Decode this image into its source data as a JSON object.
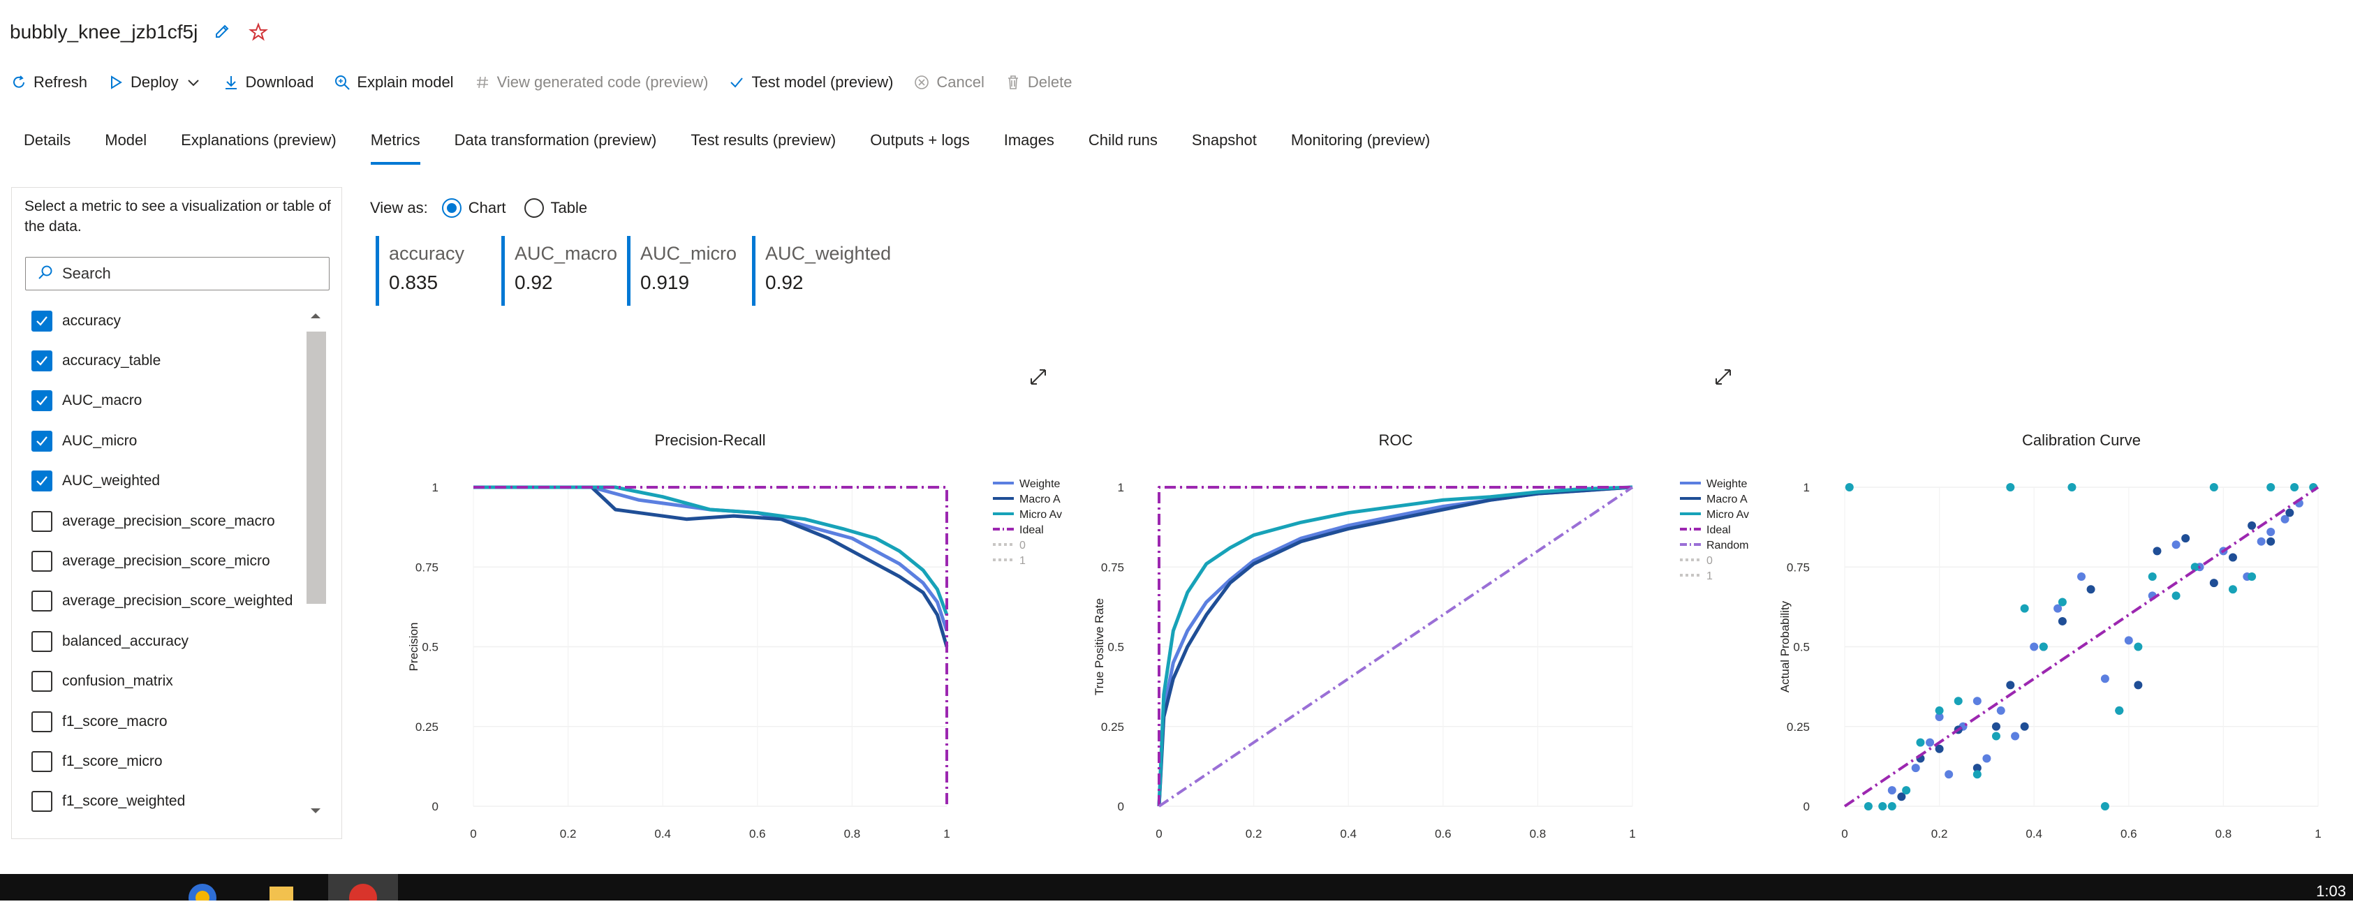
{
  "header": {
    "title": "bubbly_knee_jzb1cf5j"
  },
  "toolbar": [
    {
      "label": "Refresh",
      "icon": "refresh-icon",
      "enabled": true
    },
    {
      "label": "Deploy",
      "icon": "play-icon",
      "enabled": true
    },
    {
      "label": "Download",
      "icon": "download-icon",
      "enabled": true
    },
    {
      "label": "Explain model",
      "icon": "explain-icon",
      "enabled": true
    },
    {
      "label": "View generated code (preview)",
      "icon": "hash-icon",
      "enabled": false
    },
    {
      "label": "Test model (preview)",
      "icon": "check-icon",
      "enabled": true
    },
    {
      "label": "Cancel",
      "icon": "cancel-icon",
      "enabled": false
    },
    {
      "label": "Delete",
      "icon": "trash-icon",
      "enabled": false
    }
  ],
  "tabs": [
    "Details",
    "Model",
    "Explanations (preview)",
    "Metrics",
    "Data transformation (preview)",
    "Test results (preview)",
    "Outputs + logs",
    "Images",
    "Child runs",
    "Snapshot",
    "Monitoring (preview)"
  ],
  "active_tab": "Metrics",
  "left_panel": {
    "description": "Select a metric to see a visualization or table of the data.",
    "search_placeholder": "Search",
    "metrics": [
      {
        "label": "accuracy",
        "checked": true
      },
      {
        "label": "accuracy_table",
        "checked": true
      },
      {
        "label": "AUC_macro",
        "checked": true
      },
      {
        "label": "AUC_micro",
        "checked": true
      },
      {
        "label": "AUC_weighted",
        "checked": true
      },
      {
        "label": "average_precision_score_macro",
        "checked": false
      },
      {
        "label": "average_precision_score_micro",
        "checked": false
      },
      {
        "label": "average_precision_score_weighted",
        "checked": false
      },
      {
        "label": "balanced_accuracy",
        "checked": false
      },
      {
        "label": "confusion_matrix",
        "checked": false
      },
      {
        "label": "f1_score_macro",
        "checked": false
      },
      {
        "label": "f1_score_micro",
        "checked": false
      },
      {
        "label": "f1_score_weighted",
        "checked": false
      }
    ]
  },
  "view_as": {
    "label": "View as:",
    "options": [
      "Chart",
      "Table"
    ],
    "selected": "Chart"
  },
  "metric_cards": [
    {
      "name": "accuracy",
      "value": "0.835"
    },
    {
      "name": "AUC_macro",
      "value": "0.92"
    },
    {
      "name": "AUC_micro",
      "value": "0.919"
    },
    {
      "name": "AUC_weighted",
      "value": "0.92"
    }
  ],
  "colors": {
    "accent": "#0078d4",
    "weighted": "#5b7fe0",
    "macro": "#1f4e96",
    "micro": "#17a2b8",
    "ideal": "#9c27b0",
    "random": "#9a6fd6",
    "legend_muted": "#c8c6c4"
  },
  "chart_data": [
    {
      "type": "line",
      "title": "Precision-Recall",
      "xlabel": "",
      "ylabel": "Precision",
      "xlim": [
        0,
        1
      ],
      "ylim": [
        0,
        1
      ],
      "xticks": [
        "0",
        "0.2",
        "0.4",
        "0.6",
        "0.8",
        "1"
      ],
      "yticks": [
        "0",
        "0.25",
        "0.5",
        "0.75",
        "1"
      ],
      "legend": [
        "Weighte",
        "Macro A",
        "Micro Av",
        "Ideal",
        "0",
        "1"
      ],
      "series": [
        {
          "name": "Weighte",
          "x": [
            0,
            0.25,
            0.3,
            0.35,
            0.4,
            0.5,
            0.6,
            0.7,
            0.8,
            0.9,
            0.95,
            0.98,
            1
          ],
          "y": [
            1,
            1,
            0.98,
            0.96,
            0.95,
            0.93,
            0.92,
            0.88,
            0.84,
            0.76,
            0.7,
            0.64,
            0.55
          ]
        },
        {
          "name": "Macro A",
          "x": [
            0,
            0.25,
            0.3,
            0.35,
            0.45,
            0.55,
            0.65,
            0.75,
            0.8,
            0.85,
            0.9,
            0.95,
            0.98,
            1
          ],
          "y": [
            1,
            1,
            0.93,
            0.92,
            0.9,
            0.91,
            0.9,
            0.84,
            0.8,
            0.76,
            0.72,
            0.67,
            0.6,
            0.5
          ]
        },
        {
          "name": "Micro Av",
          "x": [
            0,
            0.3,
            0.4,
            0.5,
            0.6,
            0.7,
            0.78,
            0.85,
            0.9,
            0.95,
            0.98,
            1
          ],
          "y": [
            1,
            1,
            0.97,
            0.93,
            0.92,
            0.9,
            0.87,
            0.84,
            0.8,
            0.74,
            0.68,
            0.6
          ]
        },
        {
          "name": "Ideal",
          "x": [
            0,
            1,
            1
          ],
          "y": [
            1,
            1,
            0
          ]
        }
      ]
    },
    {
      "type": "line",
      "title": "ROC",
      "xlabel": "",
      "ylabel": "True Positive Rate",
      "xlim": [
        0,
        1
      ],
      "ylim": [
        0,
        1
      ],
      "xticks": [
        "0",
        "0.2",
        "0.4",
        "0.6",
        "0.8",
        "1"
      ],
      "yticks": [
        "0",
        "0.25",
        "0.5",
        "0.75",
        "1"
      ],
      "legend": [
        "Weighte",
        "Macro A",
        "Micro Av",
        "Ideal",
        "Random",
        "0",
        "1"
      ],
      "series": [
        {
          "name": "Weighte",
          "x": [
            0,
            0.01,
            0.03,
            0.06,
            0.1,
            0.15,
            0.2,
            0.3,
            0.4,
            0.5,
            0.6,
            0.7,
            0.8,
            0.9,
            1
          ],
          "y": [
            0,
            0.3,
            0.45,
            0.55,
            0.64,
            0.71,
            0.77,
            0.84,
            0.88,
            0.91,
            0.94,
            0.96,
            0.98,
            0.99,
            1
          ]
        },
        {
          "name": "Macro A",
          "x": [
            0,
            0.01,
            0.03,
            0.06,
            0.1,
            0.15,
            0.2,
            0.3,
            0.4,
            0.5,
            0.6,
            0.7,
            0.8,
            0.9,
            1
          ],
          "y": [
            0,
            0.28,
            0.4,
            0.5,
            0.6,
            0.7,
            0.76,
            0.83,
            0.87,
            0.9,
            0.93,
            0.96,
            0.98,
            0.99,
            1
          ]
        },
        {
          "name": "Micro Av",
          "x": [
            0,
            0.01,
            0.03,
            0.06,
            0.1,
            0.15,
            0.2,
            0.3,
            0.4,
            0.5,
            0.6,
            0.7,
            0.8,
            0.9,
            1
          ],
          "y": [
            0,
            0.35,
            0.55,
            0.67,
            0.76,
            0.81,
            0.85,
            0.89,
            0.92,
            0.94,
            0.96,
            0.97,
            0.985,
            0.995,
            1
          ]
        },
        {
          "name": "Ideal",
          "x": [
            0,
            0,
            1
          ],
          "y": [
            0,
            1,
            1
          ]
        },
        {
          "name": "Random",
          "x": [
            0,
            1
          ],
          "y": [
            0,
            1
          ]
        }
      ]
    },
    {
      "type": "scatter",
      "title": "Calibration Curve",
      "xlabel": "",
      "ylabel": "Actual Probability",
      "xlim": [
        0,
        1
      ],
      "ylim": [
        0,
        1
      ],
      "xticks": [
        "0",
        "0.2",
        "0.4",
        "0.6",
        "0.8",
        "1"
      ],
      "yticks": [
        "0",
        "0.25",
        "0.5",
        "0.75",
        "1"
      ],
      "series": [
        {
          "name": "Weighte",
          "x": [
            0.1,
            0.15,
            0.18,
            0.2,
            0.22,
            0.25,
            0.28,
            0.3,
            0.33,
            0.36,
            0.4,
            0.45,
            0.5,
            0.55,
            0.6,
            0.65,
            0.7,
            0.75,
            0.8,
            0.85,
            0.88,
            0.9,
            0.93,
            0.96
          ],
          "y": [
            0.05,
            0.12,
            0.2,
            0.28,
            0.1,
            0.25,
            0.33,
            0.15,
            0.3,
            0.22,
            0.5,
            0.62,
            0.72,
            0.4,
            0.52,
            0.66,
            0.82,
            0.75,
            0.8,
            0.72,
            0.83,
            0.86,
            0.9,
            0.95
          ]
        },
        {
          "name": "Macro A",
          "x": [
            0.12,
            0.16,
            0.2,
            0.24,
            0.28,
            0.32,
            0.35,
            0.38,
            0.42,
            0.46,
            0.52,
            0.58,
            0.62,
            0.66,
            0.72,
            0.78,
            0.82,
            0.86,
            0.9,
            0.94
          ],
          "y": [
            0.03,
            0.15,
            0.18,
            0.24,
            0.12,
            0.25,
            0.38,
            0.25,
            0.5,
            0.58,
            0.68,
            0.3,
            0.38,
            0.8,
            0.84,
            0.7,
            0.78,
            0.88,
            0.83,
            0.92
          ]
        },
        {
          "name": "Micro Av",
          "x": [
            0.01,
            0.05,
            0.08,
            0.1,
            0.13,
            0.16,
            0.2,
            0.24,
            0.28,
            0.32,
            0.35,
            0.38,
            0.42,
            0.46,
            0.48,
            0.55,
            0.58,
            0.62,
            0.65,
            0.7,
            0.74,
            0.78,
            0.82,
            0.86,
            0.9,
            0.95,
            0.99
          ],
          "y": [
            1,
            0,
            0,
            0,
            0.05,
            0.2,
            0.3,
            0.33,
            0.1,
            0.22,
            1,
            0.62,
            0.5,
            0.64,
            1,
            0,
            0.3,
            0.5,
            0.72,
            0.66,
            0.75,
            1,
            0.68,
            0.72,
            1,
            1,
            1
          ]
        },
        {
          "name": "Ideal",
          "x": [
            0,
            1
          ],
          "y": [
            0,
            1
          ]
        }
      ]
    }
  ],
  "taskbar": {
    "clock": "1:03"
  }
}
